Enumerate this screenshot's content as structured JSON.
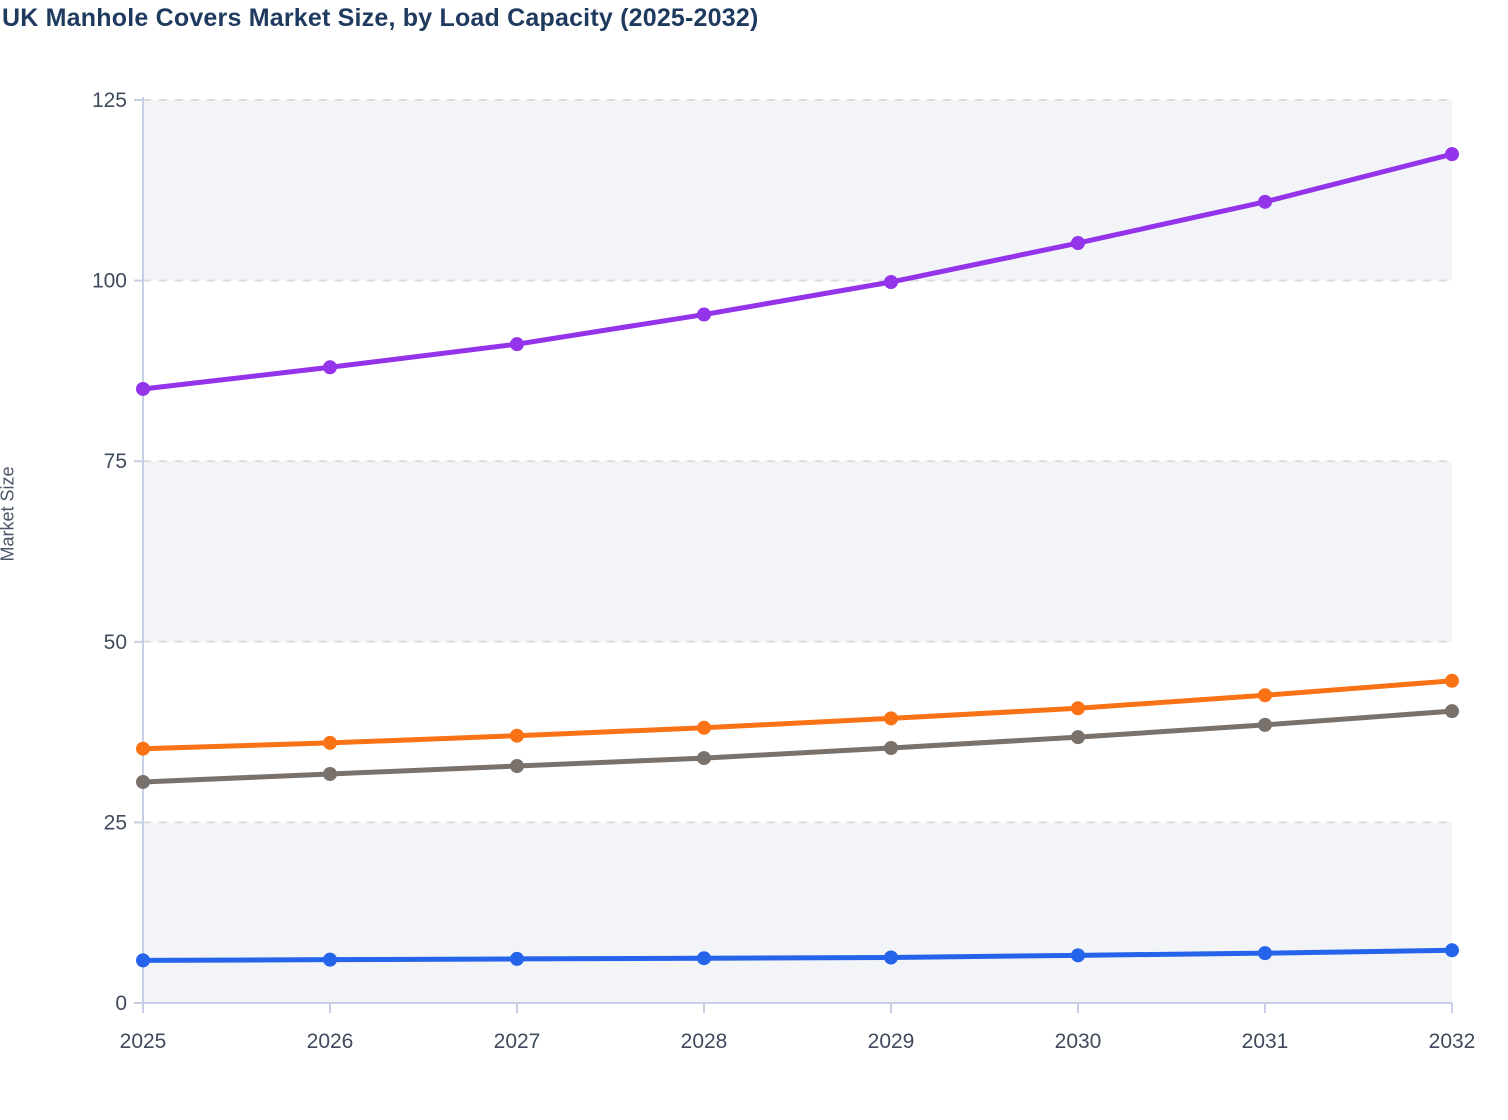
{
  "chart_data": {
    "type": "line",
    "title": "UK Manhole Covers Market Size, by Load Capacity (2025-2032)",
    "xlabel": "",
    "ylabel": "Market Size",
    "categories": [
      "2025",
      "2026",
      "2027",
      "2028",
      "2029",
      "2030",
      "2031",
      "2032"
    ],
    "y_ticks": [
      0,
      25,
      50,
      75,
      100,
      125
    ],
    "ylim": [
      0,
      125
    ],
    "grid": "horizontal-dashed",
    "legend_position": "none-visible",
    "alternating_bands": [
      [
        100,
        125
      ],
      [
        50,
        75
      ],
      [
        0,
        25
      ]
    ],
    "series": [
      {
        "id": "series-purple",
        "color": "#9333ea",
        "values": [
          85,
          88,
          91.2,
          95.3,
          99.8,
          105.2,
          110.9,
          117.5
        ]
      },
      {
        "id": "series-orange",
        "color": "#f97316",
        "values": [
          35.2,
          36.0,
          37.0,
          38.1,
          39.4,
          40.8,
          42.6,
          44.6
        ]
      },
      {
        "id": "series-gray",
        "color": "#78716c",
        "values": [
          30.6,
          31.7,
          32.8,
          33.9,
          35.3,
          36.8,
          38.5,
          40.4
        ]
      },
      {
        "id": "series-blue",
        "color": "#2563eb",
        "values": [
          5.9,
          6.0,
          6.1,
          6.2,
          6.3,
          6.6,
          6.9,
          7.3
        ]
      }
    ]
  },
  "style": {
    "title_color": "#1e3a5f",
    "axis_label_color": "#4a5568",
    "tick_label_color": "#3f4a5c",
    "axis_line_color": "#c6cfe6",
    "grid_line_color": "#dcdcde",
    "band_fill_color": "#f2f4f8",
    "background_color": "#ffffff"
  }
}
